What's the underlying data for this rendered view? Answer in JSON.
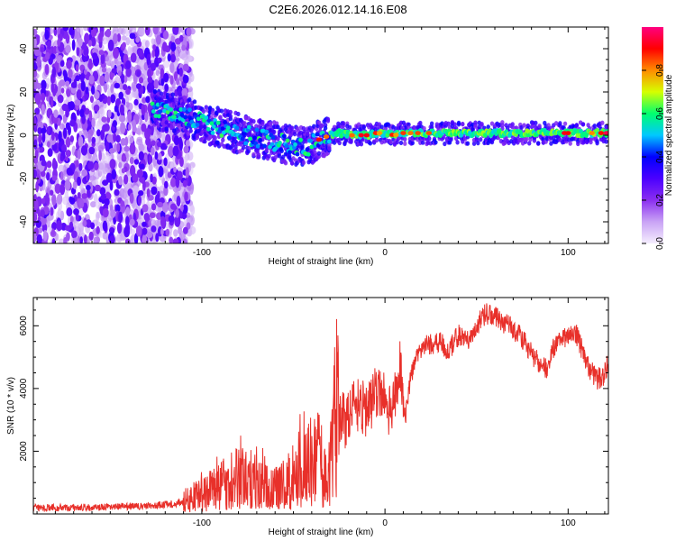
{
  "title": "C2E6.2026.012.14.16.E08",
  "chart_data": [
    {
      "type": "heatmap",
      "name": "spectrogram",
      "xlabel": "Height of straight line (km)",
      "ylabel": "Frequency (Hz)",
      "xlim": [
        -192,
        122
      ],
      "ylim": [
        -50,
        50
      ],
      "xticks": [
        -100,
        0,
        100
      ],
      "xtick_labels": [
        "-100",
        "0",
        "100"
      ],
      "yticks": [
        -40,
        -20,
        0,
        20,
        40
      ],
      "ytick_labels": [
        "-40",
        "-20",
        "0",
        "20",
        "40"
      ],
      "colorbar": {
        "label": "Normalized spectral amplitude",
        "range": [
          0,
          1
        ],
        "ticks": [
          0.0,
          0.2,
          0.4,
          0.6,
          0.8
        ],
        "tick_labels": [
          "0.0",
          "0.2",
          "0.4",
          "0.6",
          "0.8"
        ],
        "colormap": [
          "#f5eefe",
          "#c9a3f5",
          "#8b2ff0",
          "#4b00ff",
          "#0000ff",
          "#00c8ff",
          "#00ff6e",
          "#d6ff00",
          "#ff8c00",
          "#ff0000",
          "#ff0080"
        ]
      },
      "signal_track": {
        "x": [
          -127,
          -115,
          -100,
          -85,
          -70,
          -60,
          -50,
          -42,
          -36,
          -30,
          -25,
          -18,
          -10,
          -5,
          0,
          5,
          10,
          20,
          40,
          60,
          80,
          100,
          122
        ],
        "y": [
          12,
          10,
          6,
          2,
          -1,
          -3,
          -5,
          -5,
          -2,
          0,
          1,
          0,
          0,
          1,
          1,
          0,
          1,
          1,
          1,
          1,
          1,
          1,
          1
        ]
      },
      "noise_region_x": [
        -192,
        -105
      ],
      "noise_cutoff_x": -127
    },
    {
      "type": "line",
      "name": "snr",
      "xlabel": "Height of straight line (km)",
      "ylabel": "SNR (10 * v/v)",
      "xlim": [
        -192,
        122
      ],
      "ylim": [
        0,
        6900
      ],
      "xticks": [
        -100,
        0,
        100
      ],
      "xtick_labels": [
        "-100",
        "0",
        "100"
      ],
      "yticks": [
        2000,
        4000,
        6000
      ],
      "ytick_labels": [
        "2000",
        "4000",
        "6000"
      ],
      "color": "#e8302a",
      "series": [
        {
          "name": "SNR",
          "x": [
            -192,
            -170,
            -150,
            -130,
            -115,
            -108,
            -102,
            -96,
            -90,
            -84,
            -80,
            -76,
            -72,
            -68,
            -64,
            -60,
            -56,
            -52,
            -48,
            -44,
            -40,
            -37,
            -34,
            -31,
            -28,
            -25,
            -22,
            -19,
            -16,
            -13,
            -10,
            -7,
            -4,
            -1,
            2,
            5,
            8,
            11,
            14,
            17,
            20,
            25,
            30,
            35,
            40,
            45,
            50,
            55,
            60,
            65,
            70,
            75,
            80,
            85,
            88,
            92,
            96,
            100,
            104,
            108,
            112,
            116,
            119,
            122
          ],
          "y": [
            200,
            200,
            220,
            260,
            320,
            420,
            560,
            720,
            880,
            1050,
            1150,
            1050,
            900,
            1000,
            850,
            760,
            900,
            1100,
            1300,
            1550,
            1500,
            1800,
            1200,
            1050,
            2900,
            3200,
            2900,
            3300,
            3400,
            3500,
            3300,
            3600,
            4000,
            3800,
            3200,
            3600,
            4800,
            3000,
            4400,
            5000,
            5300,
            5400,
            5500,
            5200,
            5700,
            5500,
            6000,
            6400,
            6300,
            6100,
            5900,
            5600,
            5100,
            4800,
            4600,
            5300,
            5500,
            5700,
            5800,
            5200,
            4600,
            4300,
            4400,
            4800
          ]
        }
      ]
    }
  ]
}
